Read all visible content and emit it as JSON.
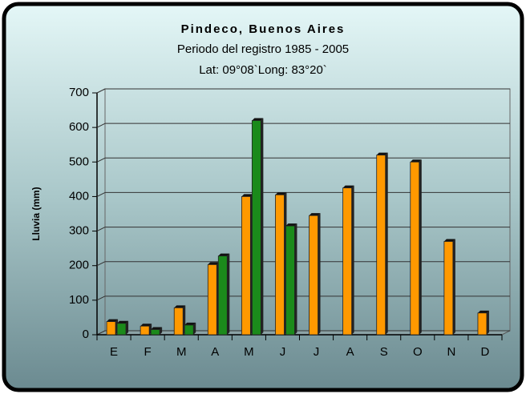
{
  "chart_data": {
    "type": "bar",
    "title": "Pindeco, Buenos Aires",
    "subtitle": "Periodo del registro 1985 - 2005",
    "location": "Lat: 09°08`Long: 83°20`",
    "y_label": "Lluvia (mm)",
    "categories": [
      "E",
      "F",
      "M",
      "A",
      "M",
      "J",
      "J",
      "A",
      "S",
      "O",
      "N",
      "D"
    ],
    "series": [
      {
        "color": "#ff9900",
        "values": [
          38,
          25,
          78,
          203,
          400,
          405,
          345,
          425,
          520,
          500,
          270,
          63
        ]
      },
      {
        "color": "#1b8a1b",
        "values": [
          33,
          15,
          28,
          228,
          620,
          315,
          null,
          null,
          null,
          null,
          null,
          null
        ]
      }
    ],
    "ylim": [
      0,
      700
    ],
    "yticks": [
      0,
      100,
      200,
      300,
      400,
      500,
      600,
      700
    ],
    "grid": true
  }
}
